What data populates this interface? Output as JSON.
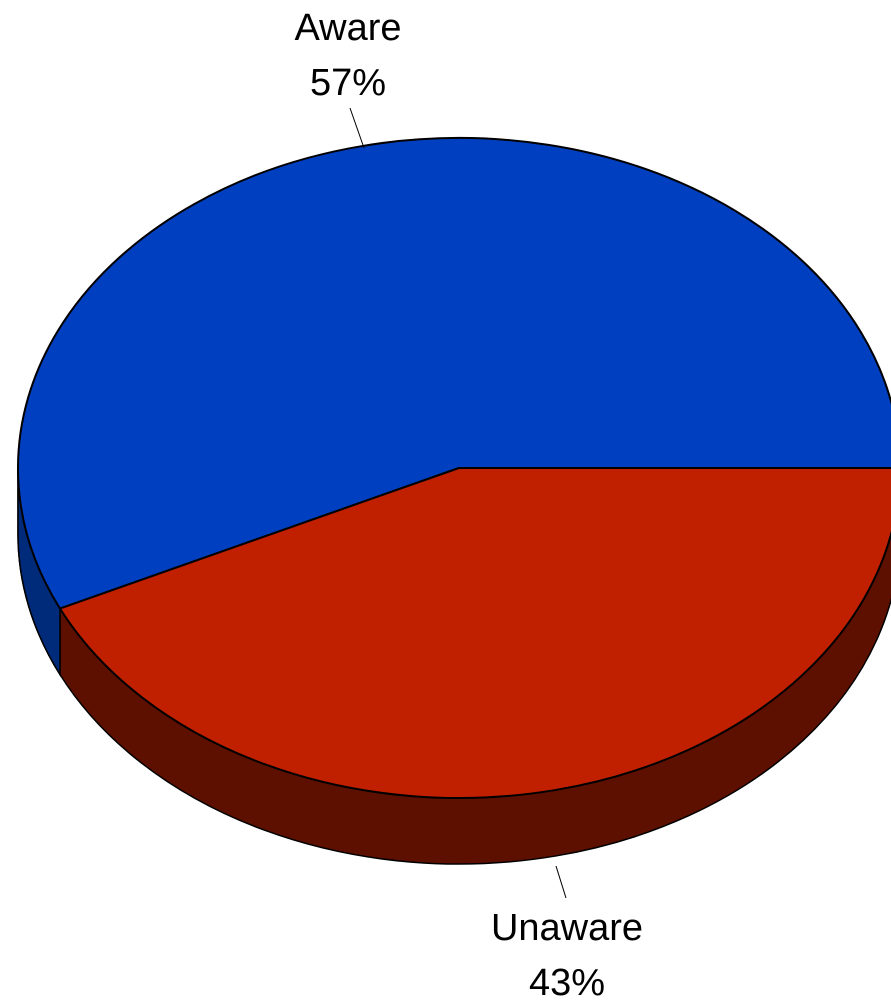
{
  "chart_data": {
    "type": "pie",
    "style": "3d",
    "slices": [
      {
        "label": "Aware",
        "value": 57,
        "value_label": "57%",
        "color": "#0040C0",
        "side_color": "#002A7A"
      },
      {
        "label": "Unaware",
        "value": 43,
        "value_label": "43%",
        "color": "#C02000",
        "side_color": "#5E1000"
      }
    ],
    "legend": "none"
  }
}
